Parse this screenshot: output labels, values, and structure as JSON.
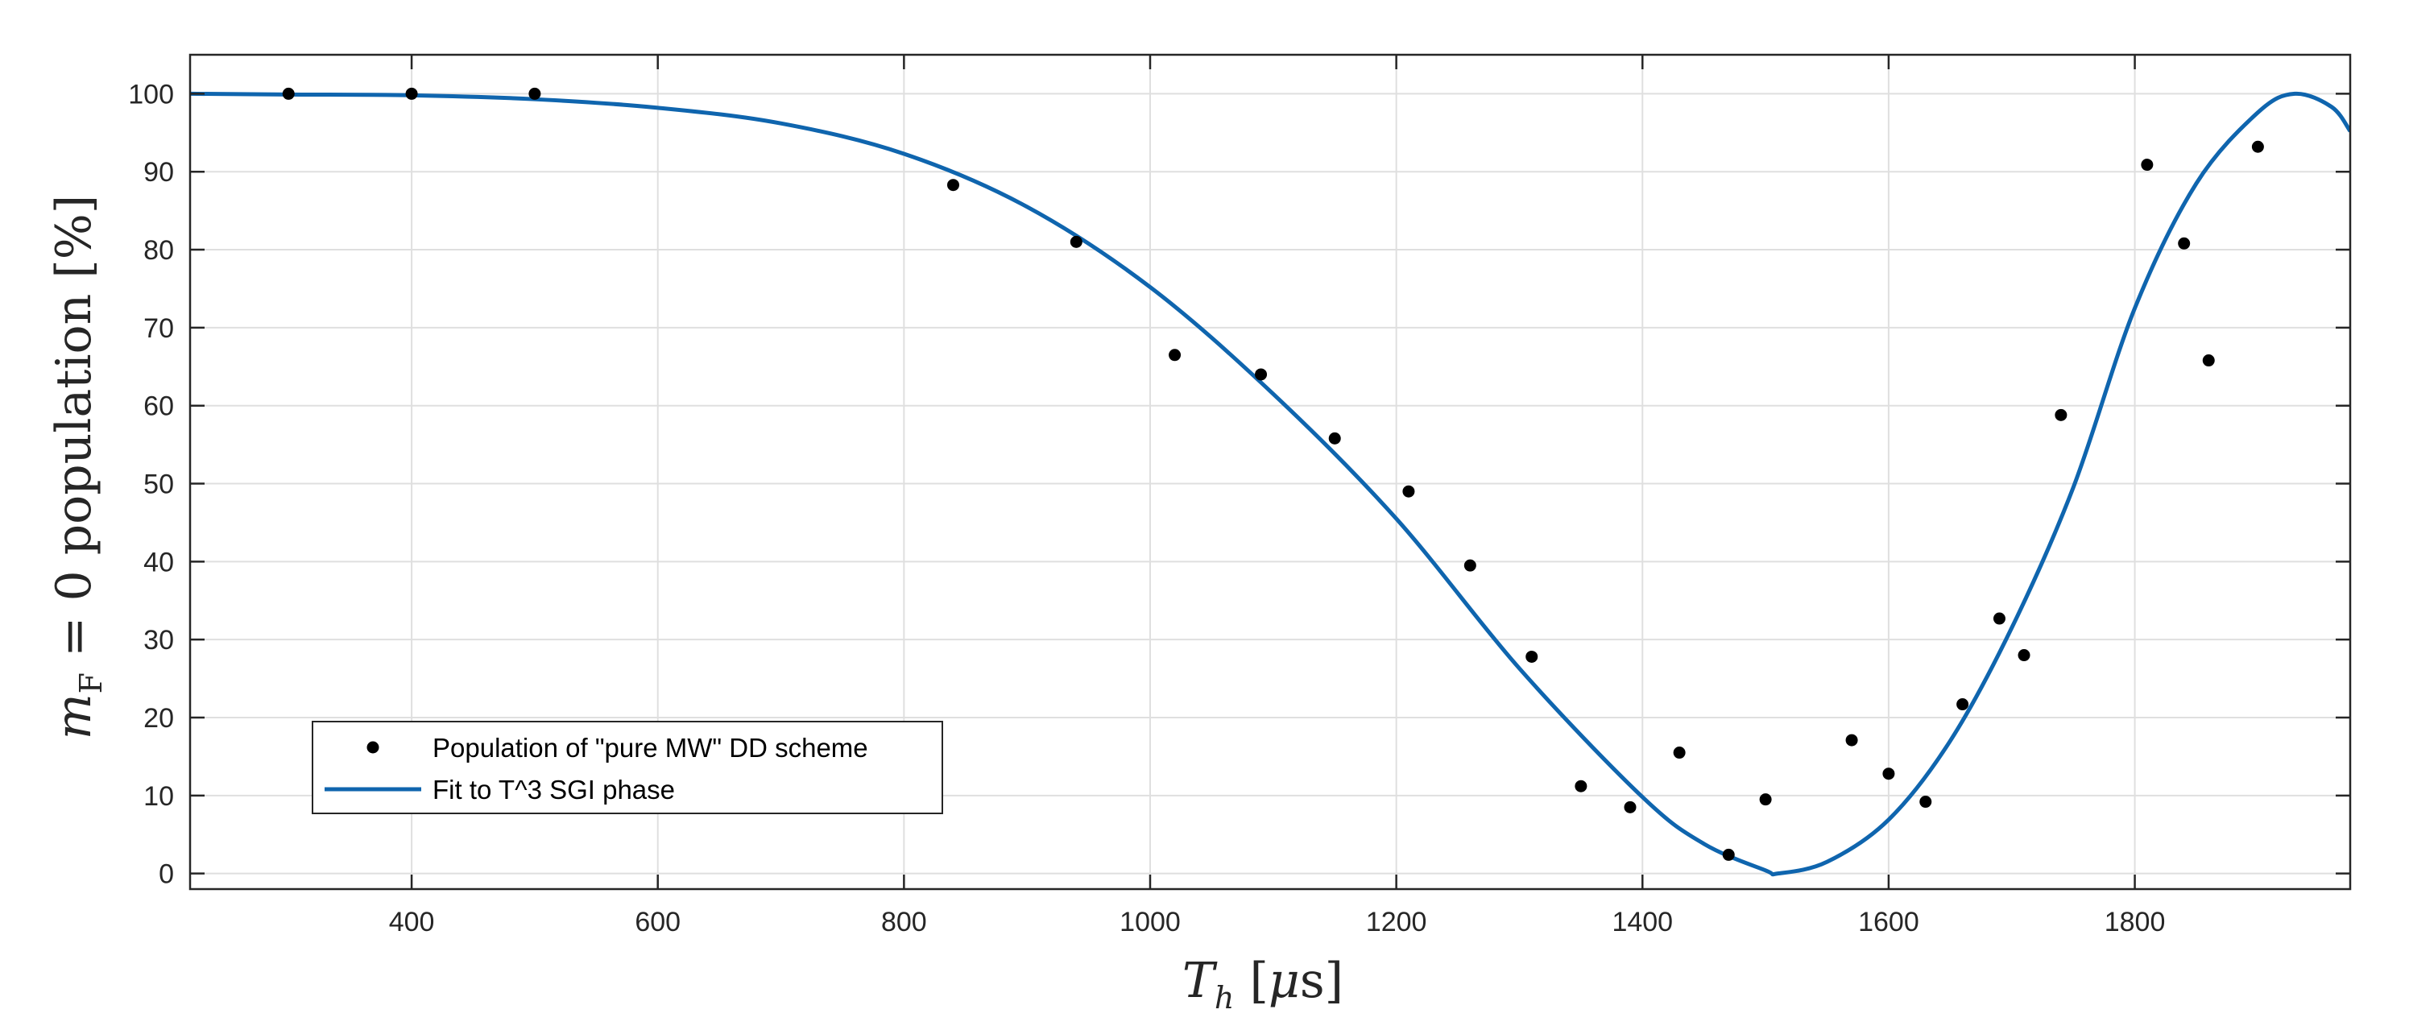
{
  "chart_data": {
    "type": "scatter",
    "title": "",
    "xlabel": "T_h [μs]",
    "ylabel": "m_F = 0 population [%]",
    "xlim": [
      220,
      1975
    ],
    "ylim": [
      -2,
      105
    ],
    "xticks": [
      400,
      600,
      800,
      1000,
      1200,
      1400,
      1600,
      1800
    ],
    "yticks": [
      0,
      10,
      20,
      30,
      40,
      50,
      60,
      70,
      80,
      90,
      100
    ],
    "grid": true,
    "legend_position": "lower-left",
    "series": [
      {
        "name": "Population of \"pure MW\" DD scheme",
        "kind": "scatter",
        "color": "#000000",
        "x": [
          300,
          400,
          500,
          840,
          940,
          1020,
          1090,
          1150,
          1210,
          1260,
          1310,
          1350,
          1390,
          1430,
          1470,
          1500,
          1570,
          1600,
          1630,
          1660,
          1690,
          1710,
          1740,
          1810,
          1840,
          1860,
          1900
        ],
        "y": [
          100,
          100,
          100,
          88.3,
          81,
          66.5,
          64,
          55.8,
          49,
          39.5,
          27.8,
          11.2,
          8.5,
          15.5,
          2.4,
          9.5,
          17.1,
          12.8,
          9.2,
          21.7,
          32.7,
          28,
          58.8,
          90.9,
          80.8,
          65.8,
          93.2
        ]
      },
      {
        "name": "Fit to T^3 SGI phase",
        "kind": "line",
        "color": "#0f65ae",
        "x": [
          220,
          300,
          400,
          500,
          600,
          700,
          800,
          900,
          1000,
          1100,
          1200,
          1300,
          1400,
          1450,
          1500,
          1510,
          1550,
          1600,
          1650,
          1700,
          1750,
          1800,
          1850,
          1900,
          1930,
          1960,
          1975
        ],
        "y": [
          100,
          99.9,
          99.8,
          99.3,
          98.2,
          96.2,
          92.3,
          85.5,
          75.2,
          61.5,
          45.5,
          26.3,
          9.8,
          3.8,
          0.4,
          0.0,
          1.5,
          6.9,
          17.0,
          31.5,
          49.5,
          72.5,
          88.5,
          97.6,
          100,
          98.3,
          95.2
        ]
      }
    ]
  }
}
